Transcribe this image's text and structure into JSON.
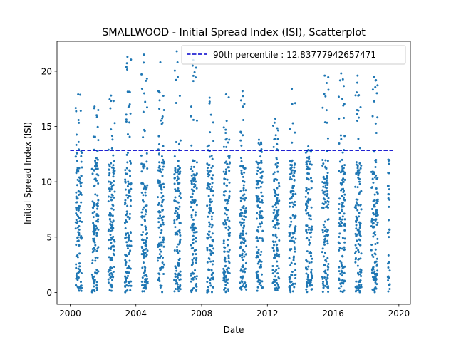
{
  "chart_data": {
    "type": "scatter",
    "title": "SMALLWOOD - Initial Spread Index (ISI), Scatterplot",
    "xlabel": "Date",
    "ylabel": "Initial Spread Index (ISI)",
    "xlim": [
      1999.2,
      2020.7
    ],
    "ylim": [
      -1.07,
      22.7
    ],
    "x_ticks": [
      2000,
      2004,
      2008,
      2012,
      2016,
      2020
    ],
    "y_ticks": [
      0,
      5,
      10,
      15,
      20
    ],
    "grid": false,
    "legend_position": "top-right",
    "point_color": "#1f77b4",
    "reference_line": {
      "label": "90th percentile : 12.83777942657471",
      "value": 12.83777942657471,
      "x_range": [
        2000.0,
        2019.7
      ],
      "color": "#0000cc",
      "style": "dashed"
    },
    "series": [
      {
        "marker": "point",
        "seasons": [
          {
            "year": 2000,
            "start": 2000.33,
            "end": 2000.72,
            "max": 17.9
          },
          {
            "year": 2001,
            "start": 2001.33,
            "end": 2001.72,
            "max": 16.8
          },
          {
            "year": 2002,
            "start": 2002.33,
            "end": 2002.72,
            "max": 17.8
          },
          {
            "year": 2003,
            "start": 2003.33,
            "end": 2003.72,
            "max": 21.3
          },
          {
            "year": 2004,
            "start": 2004.33,
            "end": 2004.72,
            "max": 21.5
          },
          {
            "year": 2005,
            "start": 2005.33,
            "end": 2005.72,
            "max": 20.8
          },
          {
            "year": 2006,
            "start": 2006.33,
            "end": 2006.72,
            "max": 21.8
          },
          {
            "year": 2007,
            "start": 2007.33,
            "end": 2007.72,
            "max": 21.0
          },
          {
            "year": 2008,
            "start": 2008.33,
            "end": 2008.72,
            "max": 17.6
          },
          {
            "year": 2009,
            "start": 2009.33,
            "end": 2009.72,
            "max": 17.9
          },
          {
            "year": 2010,
            "start": 2010.33,
            "end": 2010.72,
            "max": 18.2
          },
          {
            "year": 2011,
            "start": 2011.33,
            "end": 2011.72,
            "max": 13.8
          },
          {
            "year": 2012,
            "start": 2012.33,
            "end": 2012.72,
            "max": 15.7
          },
          {
            "year": 2013,
            "start": 2013.33,
            "end": 2013.72,
            "max": 18.4
          },
          {
            "year": 2014,
            "start": 2014.33,
            "end": 2014.72,
            "max": 13.2
          },
          {
            "year": 2015,
            "start": 2015.33,
            "end": 2015.72,
            "max": 19.6
          },
          {
            "year": 2016,
            "start": 2016.33,
            "end": 2016.72,
            "max": 19.8
          },
          {
            "year": 2017,
            "start": 2017.33,
            "end": 2017.72,
            "max": 19.6
          },
          {
            "year": 2018,
            "start": 2018.33,
            "end": 2018.72,
            "max": 19.5
          },
          {
            "year": 2019,
            "start": 2019.33,
            "end": 2019.45,
            "max": 11.9
          }
        ]
      }
    ]
  }
}
